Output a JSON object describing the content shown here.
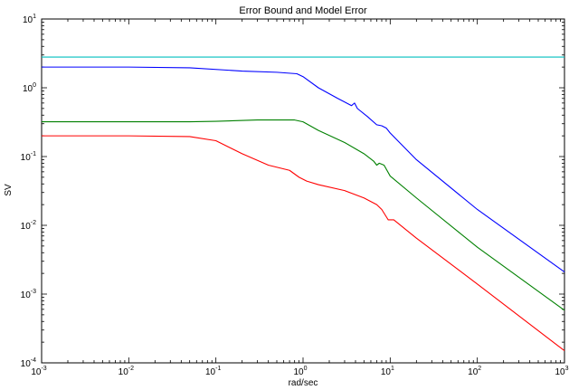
{
  "chart_data": {
    "type": "line",
    "title": "Error Bound and Model Error",
    "xlabel": "rad/sec",
    "ylabel": "SV",
    "xscale": "log",
    "yscale": "log",
    "xlim": [
      0.001,
      1000
    ],
    "ylim": [
      0.0001,
      10
    ],
    "grid": false,
    "x_tick_labels": [
      {
        "base": "10",
        "exp": "-3",
        "value": 0.001
      },
      {
        "base": "10",
        "exp": "-2",
        "value": 0.01
      },
      {
        "base": "10",
        "exp": "-1",
        "value": 0.1
      },
      {
        "base": "10",
        "exp": "0",
        "value": 1
      },
      {
        "base": "10",
        "exp": "1",
        "value": 10
      },
      {
        "base": "10",
        "exp": "2",
        "value": 100
      },
      {
        "base": "10",
        "exp": "3",
        "value": 1000
      }
    ],
    "y_tick_labels": [
      {
        "base": "10",
        "exp": "-4",
        "value": 0.0001
      },
      {
        "base": "10",
        "exp": "-3",
        "value": 0.001
      },
      {
        "base": "10",
        "exp": "-2",
        "value": 0.01
      },
      {
        "base": "10",
        "exp": "-1",
        "value": 0.1
      },
      {
        "base": "10",
        "exp": "0",
        "value": 1
      },
      {
        "base": "10",
        "exp": "1",
        "value": 10
      }
    ],
    "series": [
      {
        "color": "#00bfbf",
        "points": [
          [
            0.001,
            2.8
          ],
          [
            1000,
            2.8
          ]
        ]
      },
      {
        "color": "#0000ff",
        "points": [
          [
            0.001,
            2.0
          ],
          [
            0.01,
            2.0
          ],
          [
            0.05,
            1.95
          ],
          [
            0.2,
            1.75
          ],
          [
            0.5,
            1.68
          ],
          [
            0.85,
            1.6
          ],
          [
            1.0,
            1.45
          ],
          [
            1.5,
            1.0
          ],
          [
            2.5,
            0.7
          ],
          [
            3.6,
            0.55
          ],
          [
            3.9,
            0.6
          ],
          [
            4.2,
            0.5
          ],
          [
            5.5,
            0.38
          ],
          [
            7.0,
            0.29
          ],
          [
            8.0,
            0.28
          ],
          [
            9.0,
            0.26
          ],
          [
            10.0,
            0.22
          ],
          [
            20.0,
            0.09
          ],
          [
            100.0,
            0.017
          ],
          [
            1000.0,
            0.0021
          ]
        ]
      },
      {
        "color": "#008000",
        "points": [
          [
            0.001,
            0.32
          ],
          [
            0.01,
            0.32
          ],
          [
            0.05,
            0.32
          ],
          [
            0.1,
            0.325
          ],
          [
            0.3,
            0.34
          ],
          [
            0.8,
            0.34
          ],
          [
            1.0,
            0.32
          ],
          [
            1.5,
            0.24
          ],
          [
            3.0,
            0.16
          ],
          [
            5.0,
            0.11
          ],
          [
            6.5,
            0.085
          ],
          [
            7.0,
            0.075
          ],
          [
            7.5,
            0.08
          ],
          [
            8.5,
            0.075
          ],
          [
            10.0,
            0.052
          ],
          [
            20.0,
            0.025
          ],
          [
            100.0,
            0.0048
          ],
          [
            1000.0,
            0.00058
          ]
        ]
      },
      {
        "color": "#ff0000",
        "points": [
          [
            0.001,
            0.2
          ],
          [
            0.01,
            0.2
          ],
          [
            0.05,
            0.195
          ],
          [
            0.1,
            0.17
          ],
          [
            0.2,
            0.11
          ],
          [
            0.4,
            0.075
          ],
          [
            0.7,
            0.063
          ],
          [
            0.9,
            0.05
          ],
          [
            1.1,
            0.044
          ],
          [
            1.5,
            0.039
          ],
          [
            3.0,
            0.032
          ],
          [
            5.0,
            0.025
          ],
          [
            7.0,
            0.02
          ],
          [
            8.0,
            0.017
          ],
          [
            9.5,
            0.012
          ],
          [
            11.0,
            0.012
          ],
          [
            20.0,
            0.0065
          ],
          [
            100.0,
            0.0014
          ],
          [
            1000.0,
            0.00015
          ]
        ]
      }
    ]
  }
}
